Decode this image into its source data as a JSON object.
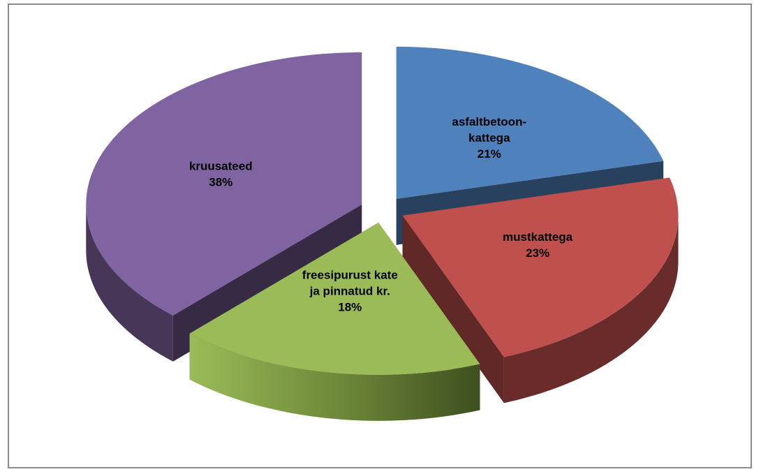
{
  "chart_data": {
    "type": "pie",
    "style": "3d-exploded",
    "slices": [
      {
        "label_lines": [
          "asfaltbetoon-",
          "kattega"
        ],
        "value": 21,
        "percent_label": "21%",
        "color": "#4f81bd"
      },
      {
        "label_lines": [
          "mustkattega"
        ],
        "value": 23,
        "percent_label": "23%",
        "color": "#c0504d"
      },
      {
        "label_lines": [
          "freesipurust kate",
          "ja pinnatud  kr."
        ],
        "value": 18,
        "percent_label": "18%",
        "color": "#9bbb59"
      },
      {
        "label_lines": [
          "kruusateed"
        ],
        "value": 38,
        "percent_label": "38%",
        "color": "#8064a2"
      }
    ],
    "legend": "none"
  }
}
